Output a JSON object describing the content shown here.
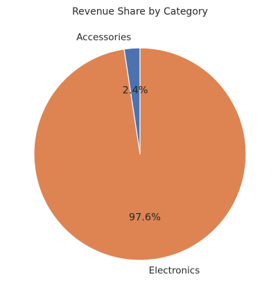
{
  "chart_data": {
    "type": "pie",
    "title": "Revenue Share by Category",
    "slices": [
      {
        "label": "Accessories",
        "value": 2.4,
        "pct_label": "2.4%",
        "color": "#4c72b0"
      },
      {
        "label": "Electronics",
        "value": 97.6,
        "pct_label": "97.6%",
        "color": "#dd8452"
      }
    ],
    "start_angle_deg": 90,
    "direction": "counterclockwise",
    "legend": "none"
  }
}
